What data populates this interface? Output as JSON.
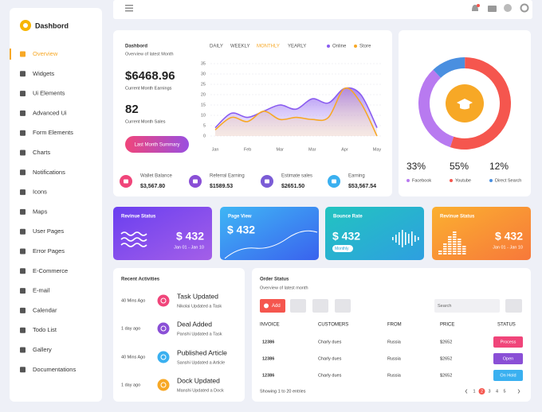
{
  "sidebar": {
    "brand": "Dashbord",
    "menu": [
      "Overview",
      "Widgets",
      "Ui Elements",
      "Advanced Ui",
      "Form Elements",
      "Charts",
      "Notifications",
      "Icons",
      "Maps",
      "User Pages",
      "Error Pages",
      "E-Commerce",
      "E-mail",
      "Calendar",
      "Todo List",
      "Gallery",
      "Documentations"
    ]
  },
  "overview": {
    "title": "Dashbord",
    "subtitle": "Overview of latest Month",
    "tabs": [
      "DAILY",
      "WEEKLY",
      "MONTHLY",
      "YEARLY"
    ],
    "earnings": "$6468.96",
    "earnings_label": "Current Month Earnings",
    "sales": "82",
    "sales_label": "Current Month Sales",
    "button": "Last Month Summary",
    "chart": {
      "type": "line",
      "categories": [
        "Jan",
        null,
        "Feb",
        null,
        "Mar",
        null,
        "Mar",
        null,
        "Apr",
        null,
        "May"
      ],
      "series": [
        {
          "name": "Online",
          "color": "#8a5cf0",
          "values": [
            4,
            11,
            9,
            12,
            15,
            13,
            18,
            16,
            23,
            20,
            4
          ]
        },
        {
          "name": "Store",
          "color": "#f7a826",
          "values": [
            3,
            9,
            7,
            12,
            8,
            9,
            8,
            9,
            23,
            16,
            0
          ]
        }
      ],
      "ylim": [
        0,
        35
      ],
      "yticks": [
        0,
        5,
        10,
        15,
        20,
        25,
        30,
        35
      ]
    },
    "stats": [
      {
        "label": "Wallet Balance",
        "value": "$3,567.80"
      },
      {
        "label": "Referral Earning",
        "value": "$1589.53"
      },
      {
        "label": "Estimate sales",
        "value": "$2651.50"
      },
      {
        "label": "Earning",
        "value": "$53,567.54"
      }
    ]
  },
  "traffic": {
    "type": "pie",
    "categories": [
      "Facebook",
      "Youtube",
      "Direct Search"
    ],
    "values": [
      33,
      55,
      12
    ],
    "value_labels": [
      "33%",
      "55%",
      "12%"
    ],
    "colors": [
      "#b87af0",
      "#f5564e",
      "#4a8fe0"
    ]
  },
  "cards": [
    {
      "title": "Revinue Status",
      "value": "$ 432",
      "sub": "Jan 01 - Jan 10"
    },
    {
      "title": "Page View",
      "value": "$ 432"
    },
    {
      "title": "Bounce Rate",
      "value": "$ 432",
      "badge": "Monthly"
    },
    {
      "title": "Revinue Status",
      "value": "$ 432",
      "sub": "Jan 01 - Jan 10"
    }
  ],
  "activities": {
    "title": "Recent Activities",
    "items": [
      {
        "time": "40 Mins Ago",
        "title": "Task Updated",
        "detail": "Nikolai Updated a Task"
      },
      {
        "time": "1 day ago",
        "title": "Deal Added",
        "detail": "Panshi Updated a Task"
      },
      {
        "time": "40 Mins Ago",
        "title": "Published Article",
        "detail": "Sanshi Updated a Article"
      },
      {
        "time": "1 day ago",
        "title": "Dock Updated",
        "detail": "Manshi Updated a Dock"
      }
    ]
  },
  "orders": {
    "title": "Order Status",
    "subtitle": "Overview of latest month",
    "add": "Add",
    "search": "Search",
    "columns": [
      "INVOICE",
      "CUSTOMERS",
      "FROM",
      "PRICE",
      "STATUS"
    ],
    "rows": [
      [
        "12386",
        "Charly dues",
        "Russia",
        "$2652",
        "Process"
      ],
      [
        "12386",
        "Charly dues",
        "Russia",
        "$2652",
        "Open"
      ],
      [
        "12386",
        "Charly dues",
        "Russia",
        "$2652",
        "On Hold"
      ]
    ],
    "footer": "Showing 1 to 20 entries",
    "pages": [
      "1",
      "2",
      "3",
      "4",
      "5"
    ]
  }
}
